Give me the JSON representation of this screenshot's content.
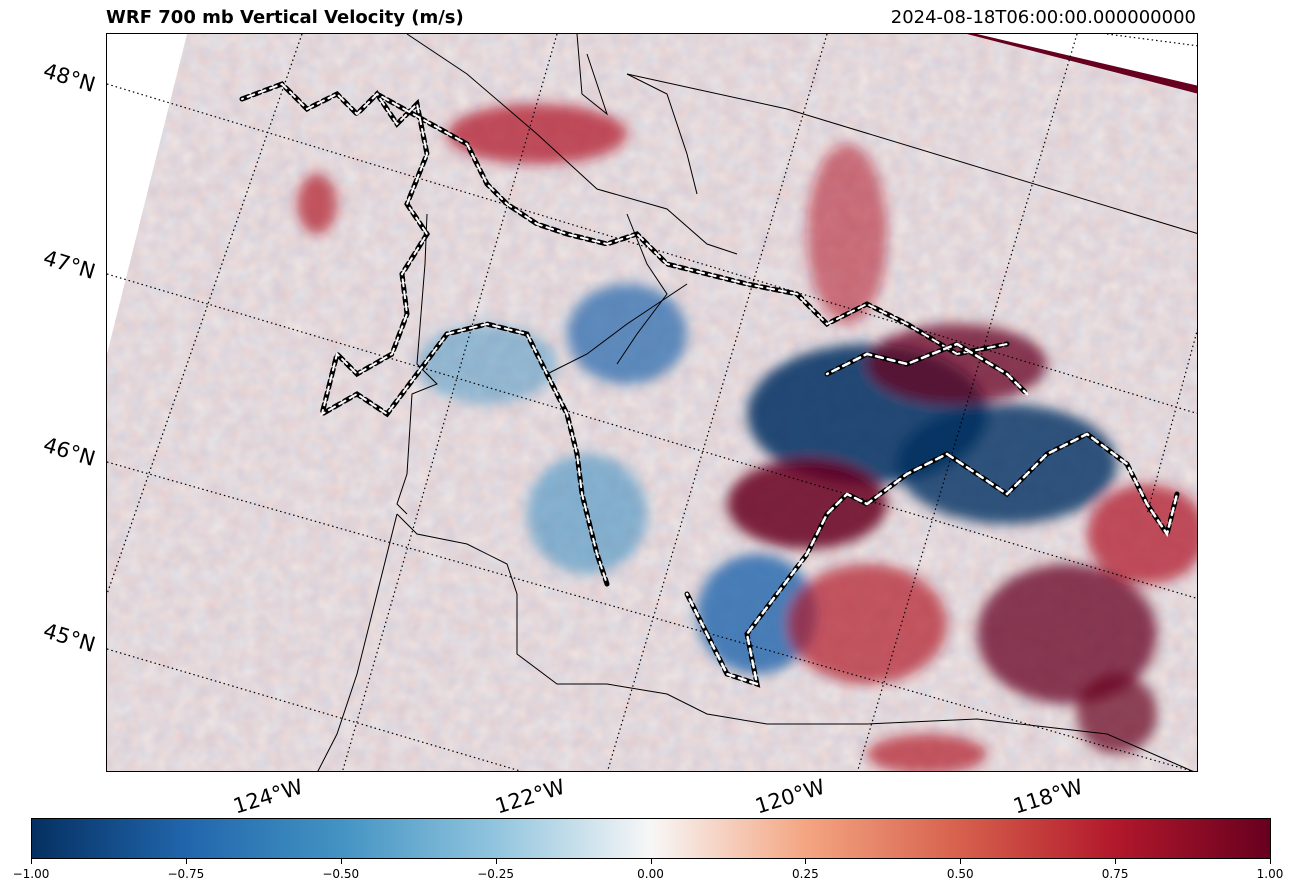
{
  "title_left": "WRF 700 mb Vertical Velocity (m/s)",
  "title_right": "2024-08-18T06:00:00.000000000",
  "lat_labels": [
    "48°N",
    "47°N",
    "46°N",
    "45°N"
  ],
  "lon_labels": [
    "124°W",
    "122°W",
    "120°W",
    "118°W"
  ],
  "colorbar": {
    "min": -1.0,
    "max": 1.0,
    "colormap": "RdBu_r",
    "ticks": [
      "−1.00",
      "−0.75",
      "−0.50",
      "−0.25",
      "0.00",
      "0.25",
      "0.50",
      "0.75",
      "1.00"
    ],
    "colors": [
      "#053061",
      "#2166ac",
      "#4393c3",
      "#92c5de",
      "#f7f7f7",
      "#f4a582",
      "#d6604d",
      "#b2182b",
      "#67001f"
    ]
  }
}
